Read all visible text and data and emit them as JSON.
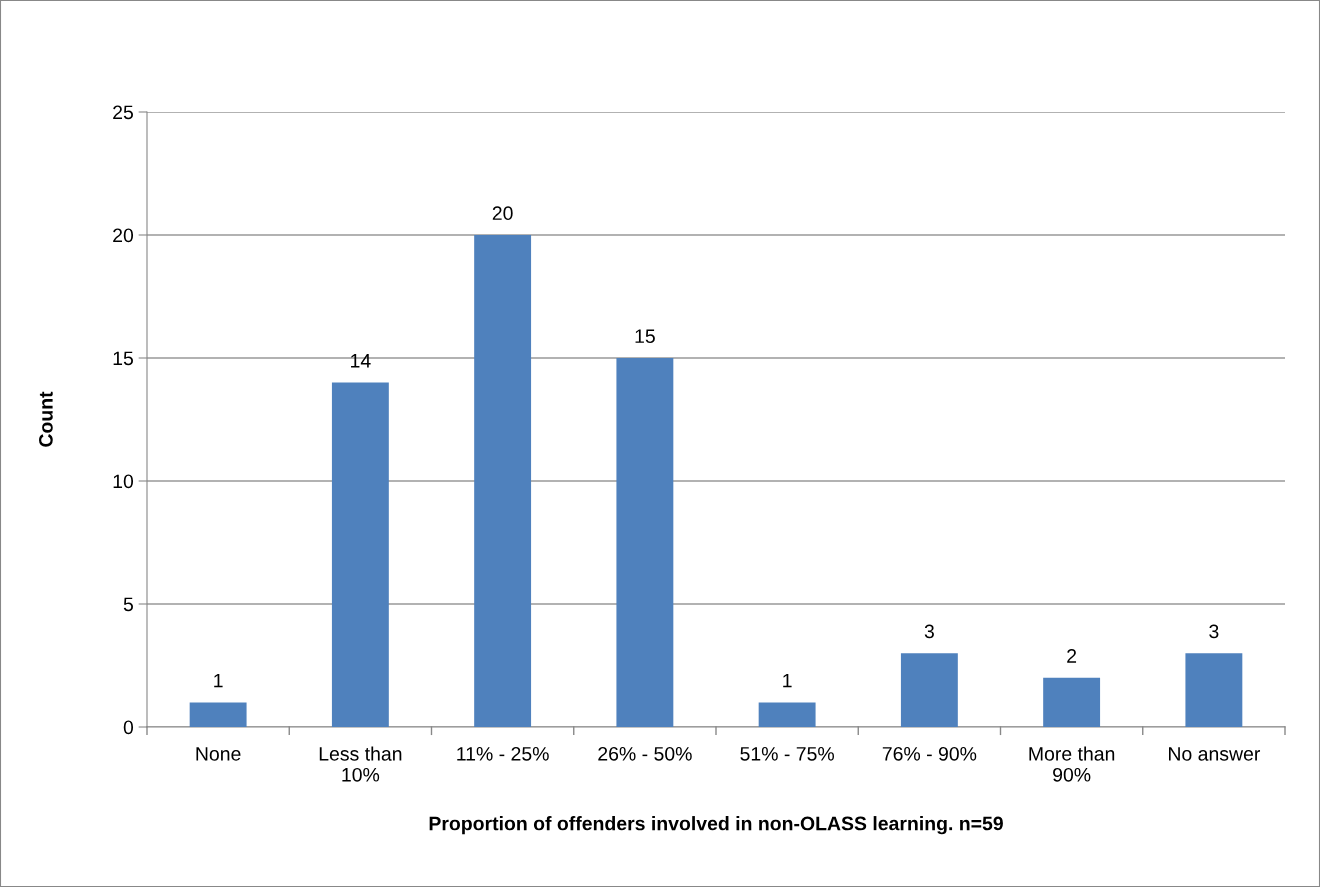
{
  "chart_data": {
    "type": "bar",
    "xlabel": "Proportion of offenders involved in non-OLASS learning. n=59",
    "ylabel": "Count",
    "categories": [
      "None",
      "Less than\n10%",
      "11% - 25%",
      "26% - 50%",
      "51% - 75%",
      "76% - 90%",
      "More than\n90%",
      "No answer"
    ],
    "values": [
      1,
      14,
      20,
      15,
      1,
      3,
      2,
      3
    ],
    "color": "#4f81bd",
    "ylim": [
      0,
      25
    ],
    "yticks": [
      0,
      5,
      10,
      15,
      20,
      25
    ],
    "grid": "y",
    "data_labels": true,
    "legend": false
  }
}
